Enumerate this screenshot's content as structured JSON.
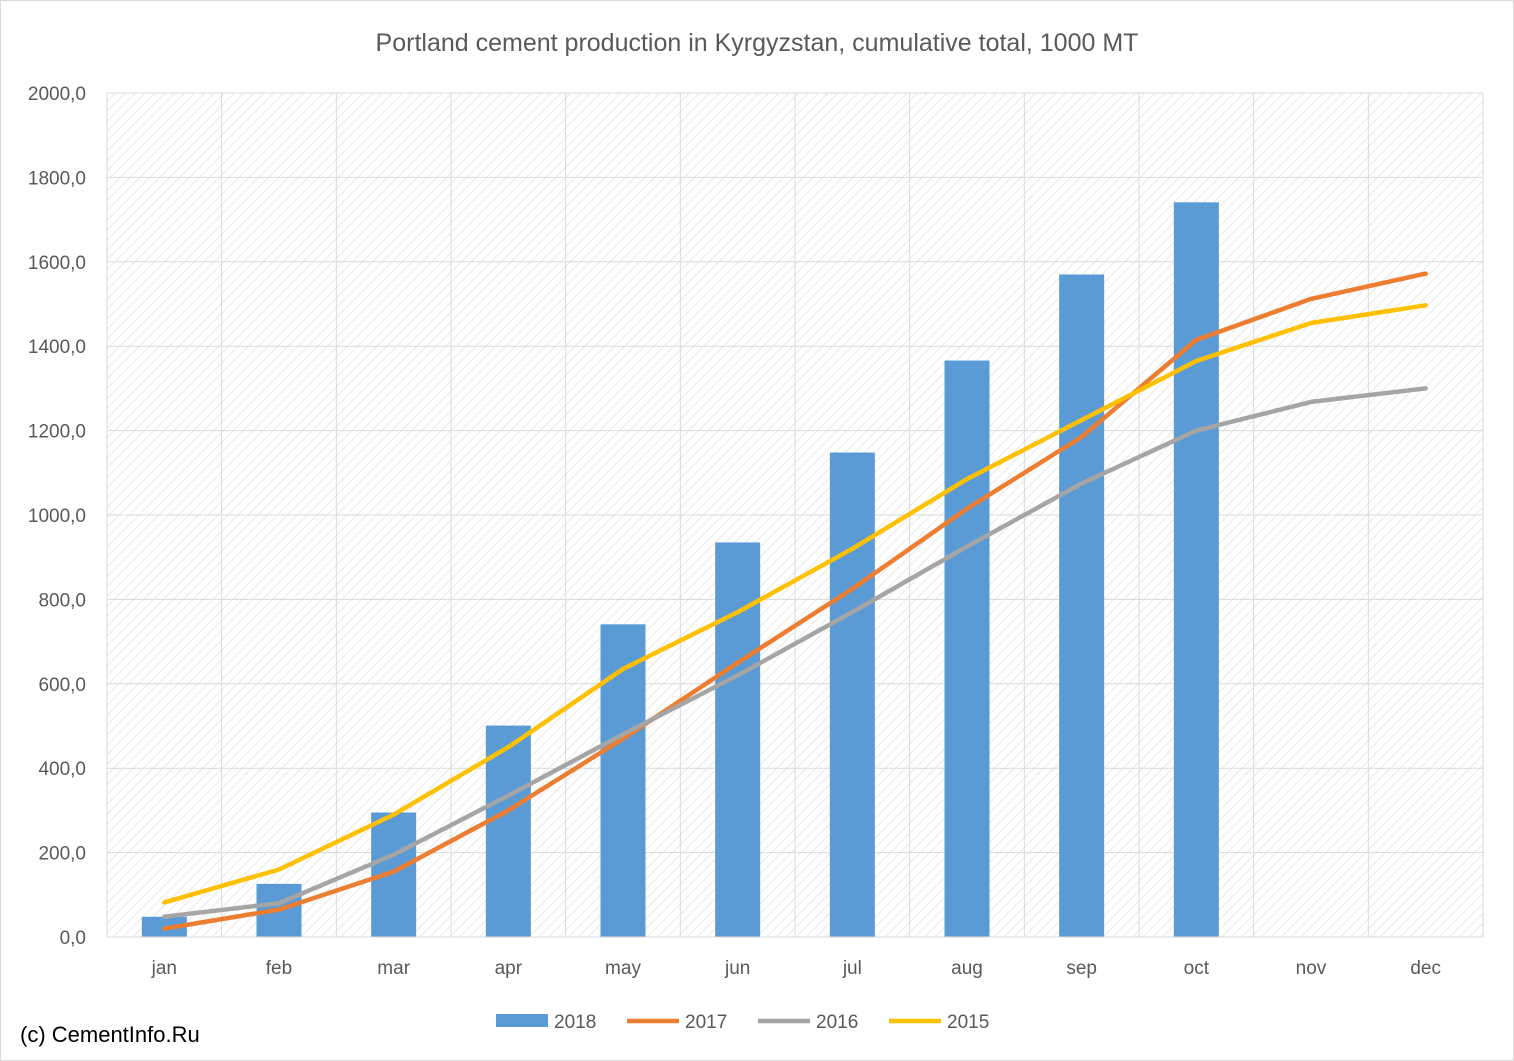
{
  "chart_data": {
    "type": "bar",
    "title": "Portland cement production in Kyrgyzstan, cumulative total, 1000 MT",
    "xlabel": "",
    "ylabel": "",
    "categories": [
      "jan",
      "feb",
      "mar",
      "apr",
      "may",
      "jun",
      "jul",
      "aug",
      "sep",
      "oct",
      "nov",
      "dec"
    ],
    "ylim": [
      0,
      2000
    ],
    "yticks": [
      "0,0",
      "200,0",
      "400,0",
      "600,0",
      "800,0",
      "1000,0",
      "1200,0",
      "1400,0",
      "1600,0",
      "1800,0",
      "2000,0"
    ],
    "grid": true,
    "legend_position": "bottom",
    "series": [
      {
        "name": "2018",
        "kind": "bar",
        "color": "#5b9bd5",
        "values": [
          48,
          126,
          295,
          501,
          741,
          935,
          1148,
          1366,
          1570,
          1741,
          null,
          null
        ]
      },
      {
        "name": "2017",
        "kind": "line",
        "color": "#ed7d31",
        "values": [
          20,
          65,
          155,
          300,
          470,
          650,
          825,
          1015,
          1185,
          1415,
          1512,
          1572
        ]
      },
      {
        "name": "2016",
        "kind": "line",
        "color": "#a5a5a5",
        "values": [
          48,
          80,
          195,
          335,
          480,
          620,
          770,
          925,
          1075,
          1200,
          1268,
          1300
        ]
      },
      {
        "name": "2015",
        "kind": "line",
        "color": "#ffc000",
        "values": [
          82,
          160,
          290,
          450,
          635,
          770,
          920,
          1085,
          1225,
          1365,
          1455,
          1497
        ]
      }
    ]
  },
  "credit": "(c) CementInfo.Ru"
}
